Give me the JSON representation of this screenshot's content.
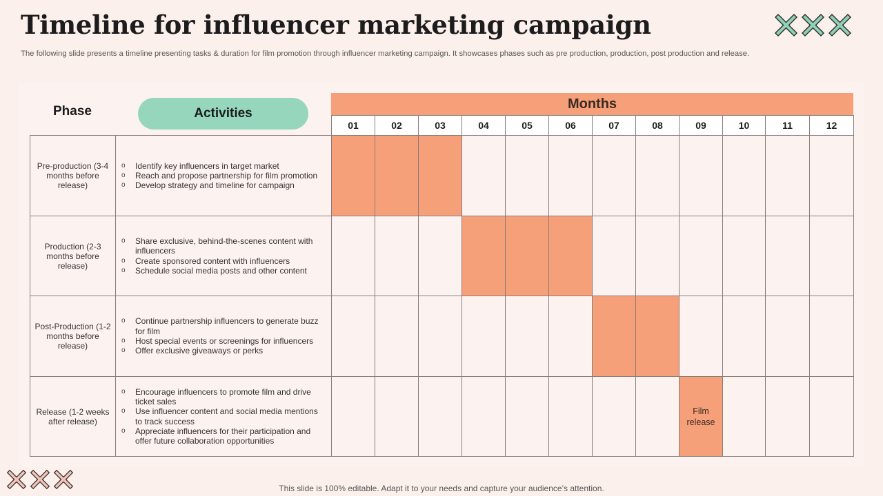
{
  "slide": {
    "title": "Timeline for influencer marketing campaign",
    "subtitle": "The following slide presents a timeline presenting tasks & duration for film promotion through influencer marketing campaign. It showcases phases such as pre production, production, post production and release.",
    "footer": "This slide is 100% editable. Adapt it to your needs and capture your audience’s attention.",
    "decor_top_color": "#8fd2b7",
    "decor_bottom_color": "#f5c4b6"
  },
  "table": {
    "phase_header": "Phase",
    "activities_header": "Activities",
    "months_header": "Months",
    "months": [
      "01",
      "02",
      "03",
      "04",
      "05",
      "06",
      "07",
      "08",
      "09",
      "10",
      "11",
      "12"
    ],
    "bar_color": "#f6a07a",
    "rows": [
      {
        "phase": "Pre-production (3-4 months before release)",
        "activities": [
          "Identify key influencers in target market",
          "Reach and propose partnership for film promotion",
          "Develop strategy and timeline for campaign"
        ],
        "filled_months": [
          1,
          2,
          3
        ],
        "note": ""
      },
      {
        "phase": "Production (2-3 months before release)",
        "activities": [
          "Share exclusive, behind-the-scenes content with influencers",
          "Create sponsored content with influencers",
          "Schedule social media posts and other content"
        ],
        "filled_months": [
          4,
          5,
          6
        ],
        "note": ""
      },
      {
        "phase": "Post-Production (1-2 months before release)",
        "activities": [
          "Continue partnership influencers to generate buzz for film",
          "Host special events or screenings for influencers",
          "Offer exclusive giveaways or perks"
        ],
        "filled_months": [
          7,
          8
        ],
        "note": ""
      },
      {
        "phase": "Release (1-2 weeks after release)",
        "activities": [
          "Encourage influencers to promote film and drive ticket sales",
          "Use influencer content and social media mentions to track success",
          "Appreciate influencers for their participation and offer future collaboration opportunities"
        ],
        "filled_months": [
          9
        ],
        "note": "Film release",
        "note_month": 9
      }
    ]
  }
}
